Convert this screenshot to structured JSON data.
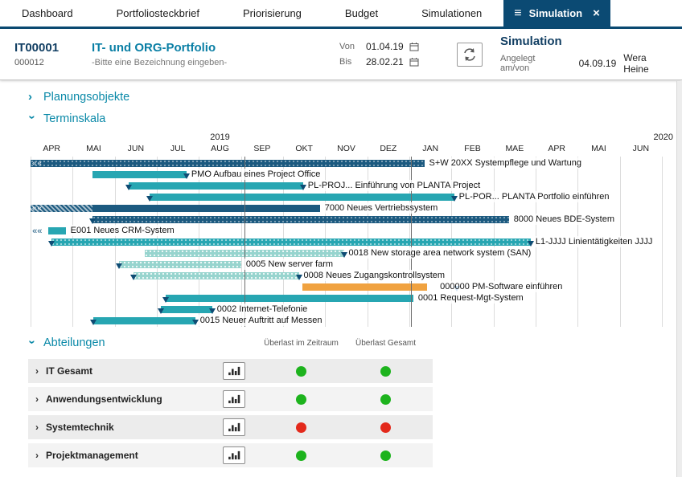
{
  "tabs": [
    {
      "label": "Dashboard",
      "active": false
    },
    {
      "label": "Portfoliosteckbrief",
      "active": false
    },
    {
      "label": "Priorisierung",
      "active": false
    },
    {
      "label": "Budget",
      "active": false
    },
    {
      "label": "Simulationen",
      "active": false
    },
    {
      "label": "Simulation",
      "active": true
    }
  ],
  "header": {
    "portfolio_id": "IT00001",
    "portfolio_code": "000012",
    "portfolio_title": "IT- und ORG-Portfolio",
    "portfolio_subtitle": "-Bitte eine Bezeichnung eingeben-",
    "von_label": "Von",
    "von_value": "01.04.19",
    "bis_label": "Bis",
    "bis_value": "28.02.21",
    "simulation_title": "Simulation",
    "created_label": "Angelegt am/von",
    "created_date": "04.09.19",
    "created_by": "Wera Heine"
  },
  "sections": {
    "planungsobjekte": "Planungsobjekte",
    "terminskala": "Terminskala",
    "abteilungen": "Abteilungen"
  },
  "gantt": {
    "years": [
      {
        "label": "2019"
      },
      {
        "label": "2020"
      }
    ],
    "months": [
      "APR",
      "MAI",
      "JUN",
      "JUL",
      "AUG",
      "SEP",
      "OKT",
      "NOV",
      "DEZ",
      "JAN",
      "FEB",
      "MAE",
      "APR",
      "MAI",
      "JUN"
    ],
    "guide_lines": [
      5.08,
      9.04
    ],
    "bars": [
      {
        "label": "S+W 20XX Systempflege und Wartung",
        "start": 0,
        "end": 9.36,
        "style": "navy-dotted",
        "prefix": "««"
      },
      {
        "label": "PMO Aufbau eines Project Office",
        "start": 1.47,
        "end": 3.71,
        "style": "teal",
        "tri_end": true
      },
      {
        "label": "PL-PROJ... Einführung von PLANTA Project",
        "start": 2.33,
        "end": 6.48,
        "style": "teal",
        "tri_start": true,
        "tri_end": true
      },
      {
        "label": "PL-POR... PLANTA Portfolio einführen",
        "start": 2.83,
        "end": 10.07,
        "style": "teal",
        "tri_start": true,
        "tri_end": true
      },
      {
        "label": "7000 Neues Vertriebssystem",
        "start": 0,
        "end": 6.88,
        "style": "navy",
        "hatch_until": 1.47,
        "prefix": "««"
      },
      {
        "label": "8000 Neues BDE-System",
        "start": 1.47,
        "end": 11.37,
        "style": "navy-dotted",
        "tri_start": true
      },
      {
        "label": "E001 Neues CRM-System",
        "start": 0.42,
        "end": 0.84,
        "style": "teal",
        "out_prefix": "««"
      },
      {
        "label": "L1-JJJJ Linientätigkeiten JJJJ",
        "start": 0.5,
        "end": 11.89,
        "style": "teal-dotted",
        "tri_start": true,
        "tri_end": true
      },
      {
        "label": "0018 New storage area network system (SAN)",
        "start": 2.71,
        "end": 7.45,
        "style": "lightteal-dotted",
        "tri_end": true
      },
      {
        "label": "0005 New server farm",
        "start": 2.1,
        "end": 5.01,
        "style": "lightteal-dotted",
        "tri_start": true
      },
      {
        "label": "0008 Neues Zugangskontrollsystem",
        "start": 2.45,
        "end": 6.38,
        "style": "lightteal-dotted",
        "tri_start": true,
        "tri_end": true
      },
      {
        "label": "000000 PM-Software einführen",
        "start": 6.46,
        "end": 9.42,
        "style": "orange",
        "label_at": 9.62,
        "milestone": 10.12
      },
      {
        "label": "0001 Request-Mgt-System",
        "start": 3.21,
        "end": 9.1,
        "style": "teal",
        "tri_start": true
      },
      {
        "label": "0002 Internet-Telefonie",
        "start": 3.1,
        "end": 4.32,
        "style": "teal",
        "tri_start": true,
        "tri_end": true
      },
      {
        "label": "0015 Neuer Auftritt auf Messen",
        "start": 1.49,
        "end": 3.92,
        "style": "teal",
        "tri_start": true,
        "tri_end": true
      }
    ]
  },
  "departments": {
    "columns": [
      "Überlast im Zeitraum",
      "Überlast Gesamt"
    ],
    "rows": [
      {
        "name": "IT Gesamt",
        "zeitraum": "green",
        "gesamt": "green"
      },
      {
        "name": "Anwendungsentwicklung",
        "zeitraum": "green",
        "gesamt": "green"
      },
      {
        "name": "Systemtechnik",
        "zeitraum": "red",
        "gesamt": "red"
      },
      {
        "name": "Projektmanagement",
        "zeitraum": "green",
        "gesamt": "green"
      }
    ]
  },
  "colors": {
    "navy": "#0b4a73",
    "teal_heading": "#0a89a8",
    "bar_teal": "#27a6b2",
    "bar_light_teal": "#97d4ce",
    "bar_navy": "#1c5a80",
    "bar_orange": "#f0a240",
    "status_green": "#1db31d",
    "status_red": "#e3291b"
  }
}
